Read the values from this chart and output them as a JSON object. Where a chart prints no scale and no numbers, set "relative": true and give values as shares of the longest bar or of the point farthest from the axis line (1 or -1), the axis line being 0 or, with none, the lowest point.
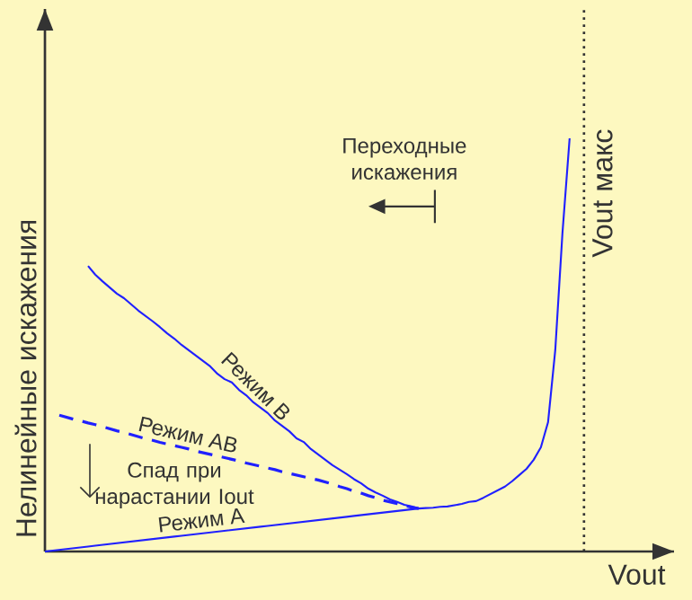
{
  "chart_data": {
    "type": "line",
    "relative": true,
    "xlabel": "Vout",
    "ylabel": "Нелинейные искажения",
    "tick_labels": false,
    "marker": "none",
    "ref_lines": [
      {
        "axis": "x",
        "label": "Vout макс",
        "line_style": "dotted",
        "color": "#333333"
      }
    ],
    "annotations": [
      "Переходные искажения",
      "Спад при нарастании Iout"
    ],
    "categories": [
      null,
      null,
      null,
      null,
      null,
      null,
      null,
      null,
      null,
      null,
      null,
      null,
      null,
      null,
      null,
      null,
      null,
      null,
      null,
      null,
      null,
      null,
      null,
      null,
      null,
      null,
      null,
      null,
      null,
      null,
      null,
      null,
      null,
      null,
      null,
      null,
      null,
      null,
      null,
      null,
      null,
      null,
      null,
      null,
      null,
      null,
      null,
      null,
      null,
      null,
      null,
      null,
      null,
      null,
      null,
      null,
      null,
      null,
      null,
      null,
      null,
      null,
      null,
      null,
      null,
      null,
      null,
      null,
      null,
      null,
      null,
      null,
      null,
      null,
      null,
      null
    ],
    "series": [
      {
        "name": "Режим B",
        "color": "#2020ff",
        "line_style": "solid",
        "values": [
          null,
          null,
          null,
          null,
          null,
          null,
          0.691,
          0.67,
          0.654,
          0.639,
          0.624,
          0.613,
          0.598,
          0.583,
          0.57,
          0.557,
          0.543,
          0.528,
          0.515,
          0.5,
          0.487,
          0.474,
          0.461,
          0.448,
          0.43,
          0.417,
          0.409,
          0.391,
          0.378,
          0.361,
          0.348,
          0.335,
          0.317,
          0.304,
          0.291,
          0.274,
          0.265,
          0.248,
          0.235,
          0.222,
          0.209,
          0.198,
          0.187,
          0.175,
          0.165,
          0.152,
          0.143,
          0.135,
          0.126,
          0.12,
          0.113,
          0.109,
          0.104,
          null,
          null,
          null,
          null,
          null,
          null,
          null,
          null,
          null,
          null,
          null,
          null,
          null,
          null,
          null,
          null,
          null,
          null,
          null,
          null,
          null,
          null,
          null
        ]
      },
      {
        "name": "Режим AB",
        "color": "#2020ff",
        "line_style": "dashed",
        "values": [
          null,
          null,
          0.33,
          0.325,
          0.32,
          0.316,
          0.311,
          0.307,
          0.302,
          0.297,
          0.292,
          0.288,
          0.283,
          0.278,
          0.273,
          0.269,
          0.264,
          0.26,
          0.256,
          0.252,
          0.248,
          0.243,
          0.239,
          0.235,
          0.231,
          0.227,
          0.223,
          0.219,
          0.214,
          0.21,
          0.206,
          0.202,
          0.198,
          0.193,
          0.189,
          0.185,
          0.181,
          0.177,
          0.173,
          0.168,
          0.163,
          0.157,
          0.152,
          0.146,
          0.141,
          0.135,
          0.13,
          0.124,
          0.12,
          0.116,
          0.111,
          0.107,
          0.104,
          null,
          null,
          null,
          null,
          null,
          null,
          null,
          null,
          null,
          null,
          null,
          null,
          null,
          null,
          null,
          null,
          null,
          null,
          null,
          null,
          null,
          null,
          null
        ]
      },
      {
        "name": "Режим A",
        "color": "#2020ff",
        "line_style": "solid",
        "values": [
          0,
          0.002,
          0.004,
          0.006,
          0.008,
          0.01,
          0.012,
          0.014,
          0.016,
          0.018,
          0.02,
          0.022,
          0.024,
          0.026,
          0.028,
          0.03,
          0.032,
          0.034,
          0.036,
          0.038,
          0.04,
          0.042,
          0.044,
          0.046,
          0.048,
          0.05,
          0.052,
          0.054,
          0.056,
          0.058,
          0.06,
          0.062,
          0.064,
          0.066,
          0.068,
          0.07,
          0.072,
          0.074,
          0.076,
          0.078,
          0.08,
          0.082,
          0.084,
          0.086,
          0.088,
          0.09,
          0.092,
          0.094,
          0.096,
          0.098,
          0.1,
          0.102,
          0.104,
          0.105,
          0.106,
          0.108,
          0.109,
          0.112,
          0.115,
          0.12,
          0.122,
          0.13,
          0.139,
          0.148,
          0.157,
          0.17,
          0.185,
          0.2,
          0.222,
          0.252,
          0.313,
          0.487,
          0.77,
          1.0,
          null,
          null
        ]
      }
    ]
  }
}
